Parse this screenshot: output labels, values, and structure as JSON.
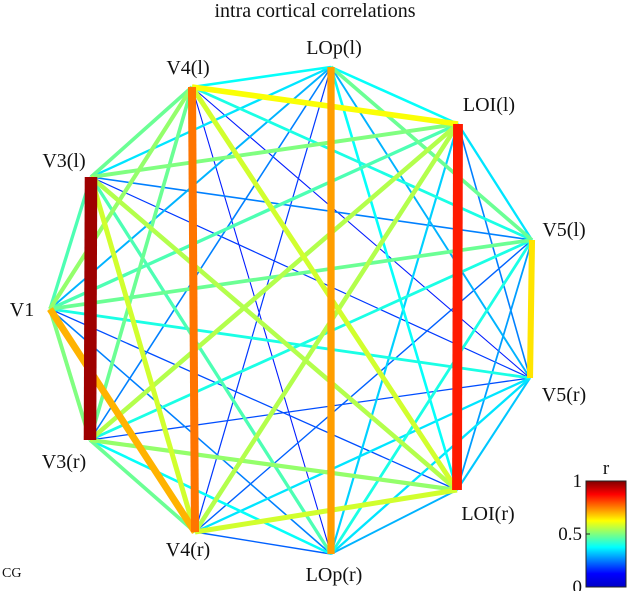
{
  "title": "intra cortical correlations",
  "corner_label": "CG",
  "nodes": [
    {
      "id": "V1",
      "label": "V1"
    },
    {
      "id": "V3l",
      "label": "V3(l)"
    },
    {
      "id": "V4l",
      "label": "V4(l)"
    },
    {
      "id": "LOpl",
      "label": "LOp(l)"
    },
    {
      "id": "LOIl",
      "label": "LOI(l)"
    },
    {
      "id": "V5l",
      "label": "V5(l)"
    },
    {
      "id": "V5r",
      "label": "V5(r)"
    },
    {
      "id": "LOIr",
      "label": "LOI(r)"
    },
    {
      "id": "LOpr",
      "label": "LOp(r)"
    },
    {
      "id": "V4r",
      "label": "V4(r)"
    },
    {
      "id": "V3r",
      "label": "V3(r)"
    }
  ],
  "edges": [
    {
      "a": "V3l",
      "b": "V3r",
      "r": 0.97
    },
    {
      "a": "V4l",
      "b": "V4r",
      "r": 0.76
    },
    {
      "a": "LOpl",
      "b": "LOpr",
      "r": 0.72
    },
    {
      "a": "LOIl",
      "b": "LOIr",
      "r": 0.85
    },
    {
      "a": "V5l",
      "b": "V5r",
      "r": 0.65
    },
    {
      "a": "V1",
      "b": "V3l",
      "r": 0.45
    },
    {
      "a": "V1",
      "b": "V3r",
      "r": 0.5
    },
    {
      "a": "V1",
      "b": "V4l",
      "r": 0.52
    },
    {
      "a": "V1",
      "b": "V4r",
      "r": 0.7
    },
    {
      "a": "V1",
      "b": "LOpl",
      "r": 0.3
    },
    {
      "a": "V1",
      "b": "LOpr",
      "r": 0.25
    },
    {
      "a": "V1",
      "b": "LOIl",
      "r": 0.45
    },
    {
      "a": "V1",
      "b": "LOIr",
      "r": 0.2
    },
    {
      "a": "V1",
      "b": "V5l",
      "r": 0.48
    },
    {
      "a": "V1",
      "b": "V5r",
      "r": 0.4
    },
    {
      "a": "V3l",
      "b": "V4l",
      "r": 0.48
    },
    {
      "a": "V3l",
      "b": "LOpl",
      "r": 0.35
    },
    {
      "a": "V3l",
      "b": "LOIl",
      "r": 0.5
    },
    {
      "a": "V3l",
      "b": "V5l",
      "r": 0.25
    },
    {
      "a": "V3l",
      "b": "V5r",
      "r": 0.18
    },
    {
      "a": "V3l",
      "b": "LOIr",
      "r": 0.55
    },
    {
      "a": "V3l",
      "b": "LOpr",
      "r": 0.45
    },
    {
      "a": "V3l",
      "b": "V4r",
      "r": 0.58
    },
    {
      "a": "V3r",
      "b": "V4l",
      "r": 0.48
    },
    {
      "a": "V3r",
      "b": "LOpl",
      "r": 0.25
    },
    {
      "a": "V3r",
      "b": "LOIl",
      "r": 0.55
    },
    {
      "a": "V3r",
      "b": "V5l",
      "r": 0.4
    },
    {
      "a": "V3r",
      "b": "V5r",
      "r": 0.2
    },
    {
      "a": "V3r",
      "b": "LOIr",
      "r": 0.52
    },
    {
      "a": "V3r",
      "b": "LOpr",
      "r": 0.38
    },
    {
      "a": "V3r",
      "b": "V4r",
      "r": 0.48
    },
    {
      "a": "V4l",
      "b": "LOpl",
      "r": 0.38
    },
    {
      "a": "V4l",
      "b": "LOIl",
      "r": 0.62
    },
    {
      "a": "V4l",
      "b": "V5l",
      "r": 0.4
    },
    {
      "a": "V4l",
      "b": "V5r",
      "r": 0.15
    },
    {
      "a": "V4l",
      "b": "LOIr",
      "r": 0.58
    },
    {
      "a": "V4l",
      "b": "LOpr",
      "r": 0.15
    },
    {
      "a": "V4r",
      "b": "LOpl",
      "r": 0.18
    },
    {
      "a": "V4r",
      "b": "LOIl",
      "r": 0.55
    },
    {
      "a": "V4r",
      "b": "V5l",
      "r": 0.22
    },
    {
      "a": "V4r",
      "b": "V5r",
      "r": 0.35
    },
    {
      "a": "V4r",
      "b": "LOIr",
      "r": 0.58
    },
    {
      "a": "V4r",
      "b": "LOpr",
      "r": 0.22
    },
    {
      "a": "LOpl",
      "b": "LOIl",
      "r": 0.38
    },
    {
      "a": "LOpl",
      "b": "V5l",
      "r": 0.48
    },
    {
      "a": "LOpl",
      "b": "V5r",
      "r": 0.3
    },
    {
      "a": "LOpl",
      "b": "LOIr",
      "r": 0.38
    },
    {
      "a": "LOpr",
      "b": "LOIl",
      "r": 0.33
    },
    {
      "a": "LOpr",
      "b": "V5l",
      "r": 0.4
    },
    {
      "a": "LOpr",
      "b": "V5r",
      "r": 0.35
    },
    {
      "a": "LOpr",
      "b": "LOIr",
      "r": 0.3
    },
    {
      "a": "LOIl",
      "b": "V5l",
      "r": 0.35
    },
    {
      "a": "LOIl",
      "b": "V5r",
      "r": 0.25
    },
    {
      "a": "LOIr",
      "b": "V5l",
      "r": 0.28
    },
    {
      "a": "LOIr",
      "b": "V5r",
      "r": 0.32
    }
  ],
  "colorbar": {
    "label": "r",
    "min": 0,
    "max": 1,
    "ticks": [
      {
        "value": 1,
        "text": "1"
      },
      {
        "value": 0.5,
        "text": "0.5"
      },
      {
        "value": 0,
        "text": "0"
      }
    ]
  }
}
